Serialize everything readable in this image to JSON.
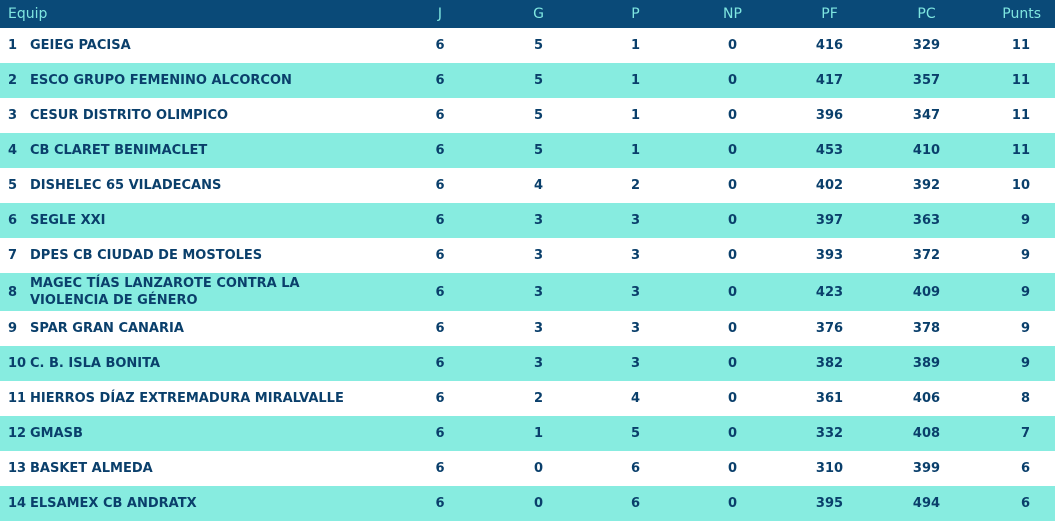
{
  "header": {
    "equip": "Equip",
    "j": "J",
    "g": "G",
    "p": "P",
    "np": "NP",
    "pf": "PF",
    "pc": "PC",
    "punts": "Punts"
  },
  "rows": [
    {
      "rank": "1",
      "team": "GEIEG PACISA",
      "j": "6",
      "g": "5",
      "p": "1",
      "np": "0",
      "pf": "416",
      "pc": "329",
      "punts": "11"
    },
    {
      "rank": "2",
      "team": "ESCO GRUPO FEMENINO ALCORCON",
      "j": "6",
      "g": "5",
      "p": "1",
      "np": "0",
      "pf": "417",
      "pc": "357",
      "punts": "11"
    },
    {
      "rank": "3",
      "team": "CESUR DISTRITO OLIMPICO",
      "j": "6",
      "g": "5",
      "p": "1",
      "np": "0",
      "pf": "396",
      "pc": "347",
      "punts": "11"
    },
    {
      "rank": "4",
      "team": "CB CLARET BENIMACLET",
      "j": "6",
      "g": "5",
      "p": "1",
      "np": "0",
      "pf": "453",
      "pc": "410",
      "punts": "11"
    },
    {
      "rank": "5",
      "team": "DISHELEC 65 VILADECANS",
      "j": "6",
      "g": "4",
      "p": "2",
      "np": "0",
      "pf": "402",
      "pc": "392",
      "punts": "10"
    },
    {
      "rank": "6",
      "team": "SEGLE XXI",
      "j": "6",
      "g": "3",
      "p": "3",
      "np": "0",
      "pf": "397",
      "pc": "363",
      "punts": "9"
    },
    {
      "rank": "7",
      "team": "DPES CB CIUDAD DE MOSTOLES",
      "j": "6",
      "g": "3",
      "p": "3",
      "np": "0",
      "pf": "393",
      "pc": "372",
      "punts": "9"
    },
    {
      "rank": "8",
      "team": "MAGEC TÍAS LANZAROTE CONTRA LA VIOLENCIA DE GÉNERO",
      "j": "6",
      "g": "3",
      "p": "3",
      "np": "0",
      "pf": "423",
      "pc": "409",
      "punts": "9"
    },
    {
      "rank": "9",
      "team": "SPAR GRAN CANARIA",
      "j": "6",
      "g": "3",
      "p": "3",
      "np": "0",
      "pf": "376",
      "pc": "378",
      "punts": "9"
    },
    {
      "rank": "10",
      "team": "C. B. ISLA BONITA",
      "j": "6",
      "g": "3",
      "p": "3",
      "np": "0",
      "pf": "382",
      "pc": "389",
      "punts": "9"
    },
    {
      "rank": "11",
      "team": "HIERROS DÍAZ EXTREMADURA MIRALVALLE",
      "j": "6",
      "g": "2",
      "p": "4",
      "np": "0",
      "pf": "361",
      "pc": "406",
      "punts": "8"
    },
    {
      "rank": "12",
      "team": "GMASB",
      "j": "6",
      "g": "1",
      "p": "5",
      "np": "0",
      "pf": "332",
      "pc": "408",
      "punts": "7"
    },
    {
      "rank": "13",
      "team": "BASKET ALMEDA",
      "j": "6",
      "g": "0",
      "p": "6",
      "np": "0",
      "pf": "310",
      "pc": "399",
      "punts": "6"
    },
    {
      "rank": "14",
      "team": "ELSAMEX CB ANDRATX",
      "j": "6",
      "g": "0",
      "p": "6",
      "np": "0",
      "pf": "395",
      "pc": "494",
      "punts": "6"
    }
  ]
}
